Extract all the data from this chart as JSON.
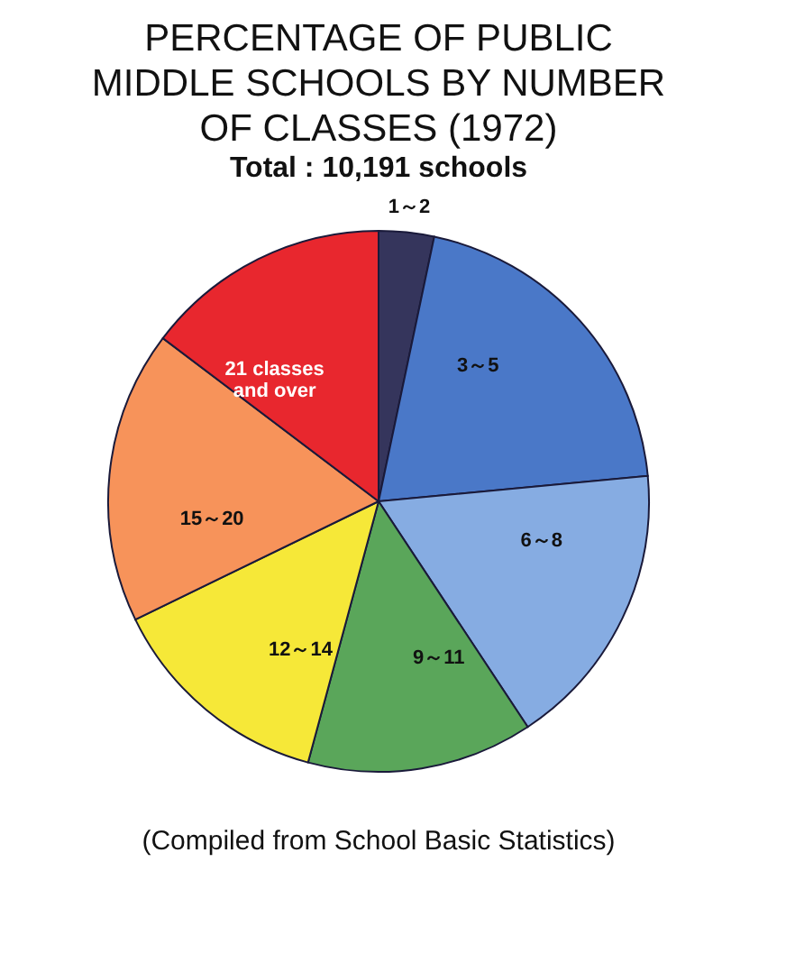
{
  "chart_data": {
    "type": "pie",
    "title": "PERCENTAGE OF PUBLIC MIDDLE SCHOOLS BY NUMBER OF CLASSES (1972)",
    "subtitle": "Total : 10,191 schools",
    "categories": [
      "1～2",
      "3～5",
      "6～8",
      "9～11",
      "12～14",
      "15～20",
      "21 classes and over"
    ],
    "values": [
      3.3,
      20.2,
      17.2,
      13.5,
      13.6,
      17.5,
      14.7
    ],
    "colors": [
      "#35355c",
      "#4a78c8",
      "#86ace2",
      "#5aa65a",
      "#f6e838",
      "#f7935a",
      "#e8272e"
    ],
    "annotations": [
      "(Compiled from School Basic Statistics)"
    ]
  }
}
